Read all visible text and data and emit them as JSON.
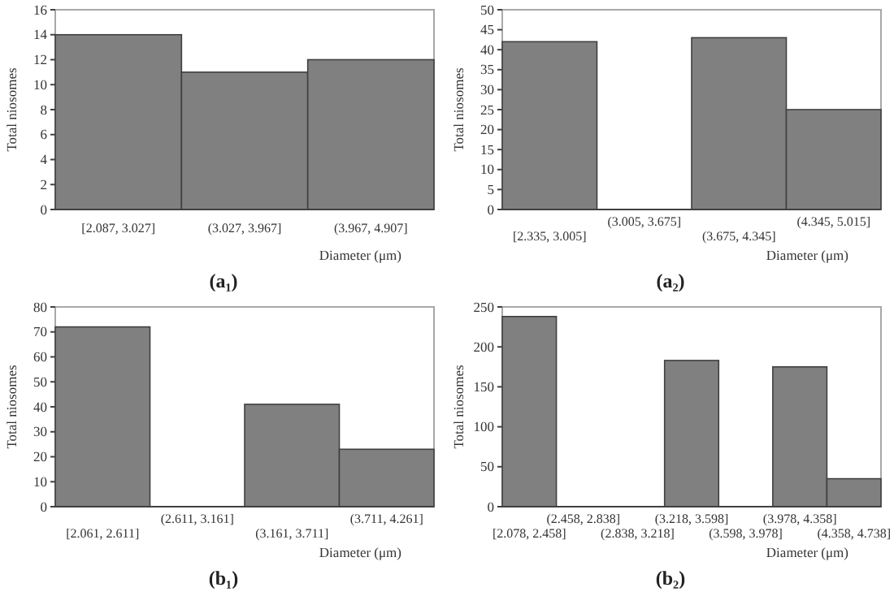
{
  "chart_data": [
    {
      "type": "bar",
      "title": "(a₁)",
      "xlabel": "Diameter (μm)",
      "ylabel": "Total niosomes",
      "categories": [
        "[2.087, 3.027]",
        "(3.027, 3.967]",
        "(3.967, 4.907]"
      ],
      "values": [
        14,
        11,
        12
      ],
      "color": "#808080",
      "ylim": [
        0,
        16
      ],
      "yticks": [
        0,
        2,
        4,
        6,
        8,
        10,
        12,
        14,
        16
      ]
    },
    {
      "type": "bar",
      "title": "(a₂)",
      "xlabel": "Diameter (μm)",
      "ylabel": "Total niosomes",
      "categories": [
        "[2.335, 3.005]",
        "(3.005, 3.675]",
        "(3.675, 4.345]",
        "(4.345, 5.015]"
      ],
      "values": [
        42,
        0,
        43,
        25
      ],
      "color": "#808080",
      "ylim": [
        0,
        50
      ],
      "yticks": [
        0,
        5,
        10,
        15,
        20,
        25,
        30,
        35,
        40,
        45,
        50
      ]
    },
    {
      "type": "bar",
      "title": "(b₁)",
      "xlabel": "Diameter (μm)",
      "ylabel": "Total niosomes",
      "categories": [
        "[2.061, 2.611]",
        "(2.611, 3.161]",
        "(3.161, 3.711]",
        "(3.711, 4.261]"
      ],
      "values": [
        72,
        0,
        41,
        23
      ],
      "color": "#808080",
      "ylim": [
        0,
        80
      ],
      "yticks": [
        0,
        10,
        20,
        30,
        40,
        50,
        60,
        70,
        80
      ]
    },
    {
      "type": "bar",
      "title": "(b₂)",
      "xlabel": "Diameter (μm)",
      "ylabel": "Total niosomes",
      "categories": [
        "[2.078, 2.458]",
        "(2.458, 2.838]",
        "(2.838, 3.218]",
        "(3.218, 3.598]",
        "(3.598, 3.978]",
        "(3.978, 4.358]",
        "(4.358, 4.738]"
      ],
      "values": [
        238,
        0,
        0,
        183,
        0,
        175,
        35
      ],
      "color": "#808080",
      "ylim": [
        0,
        250
      ],
      "yticks": [
        0,
        50,
        100,
        150,
        200,
        250
      ]
    }
  ]
}
